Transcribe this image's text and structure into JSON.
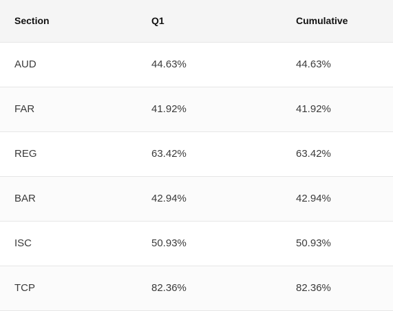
{
  "table": {
    "headers": [
      "Section",
      "Q1",
      "Cumulative"
    ],
    "rows": [
      [
        "AUD",
        "44.63%",
        "44.63%"
      ],
      [
        "FAR",
        "41.92%",
        "41.92%"
      ],
      [
        "REG",
        "63.42%",
        "63.42%"
      ],
      [
        "BAR",
        "42.94%",
        "42.94%"
      ],
      [
        "ISC",
        "50.93%",
        "50.93%"
      ],
      [
        "TCP",
        "82.36%",
        "82.36%"
      ]
    ]
  },
  "colors": {
    "header_bg": "#f5f5f5",
    "row_border": "#e6e6e6",
    "text": "#3a3a3a"
  }
}
